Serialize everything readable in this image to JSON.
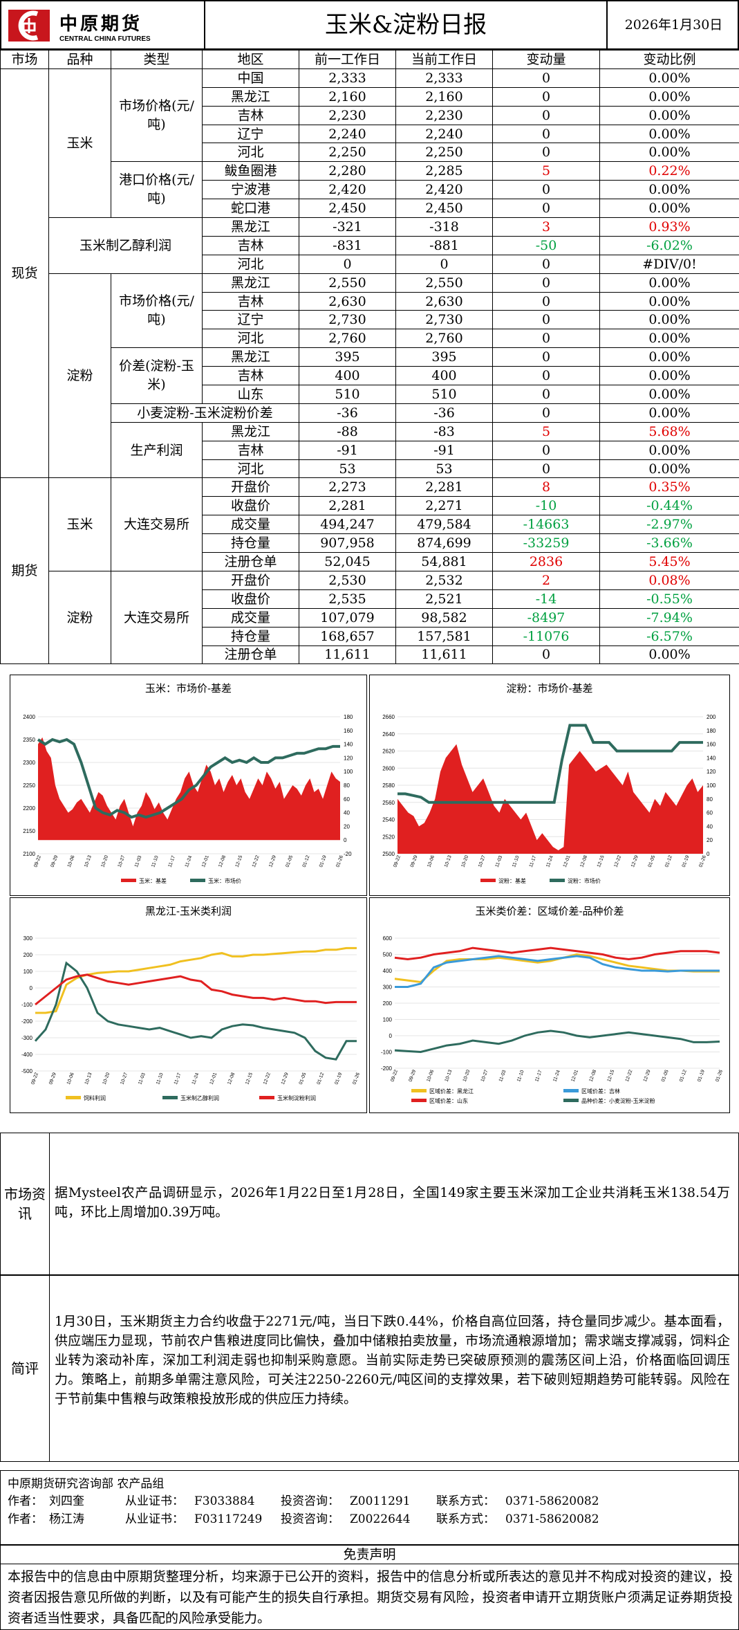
{
  "header": {
    "logo_cn": "中原期货",
    "logo_en": "CENTRAL CHINA FUTURES",
    "title": "玉米&淀粉日报",
    "date": "2026年1月30日"
  },
  "columns": [
    "市场",
    "品种",
    "类型",
    "地区",
    "前一工作日",
    "当前工作日",
    "变动量",
    "变动比例"
  ],
  "spot": {
    "market": "现货",
    "corn": {
      "name": "玉米",
      "market_price": {
        "type": "市场价格(元/吨)",
        "rows": [
          {
            "region": "中国",
            "prev": "2,333",
            "cur": "2,333",
            "chg": "0",
            "pct": "0.00%",
            "dir": ""
          },
          {
            "region": "黑龙江",
            "prev": "2,160",
            "cur": "2,160",
            "chg": "0",
            "pct": "0.00%",
            "dir": ""
          },
          {
            "region": "吉林",
            "prev": "2,230",
            "cur": "2,230",
            "chg": "0",
            "pct": "0.00%",
            "dir": ""
          },
          {
            "region": "辽宁",
            "prev": "2,240",
            "cur": "2,240",
            "chg": "0",
            "pct": "0.00%",
            "dir": ""
          },
          {
            "region": "河北",
            "prev": "2,250",
            "cur": "2,250",
            "chg": "0",
            "pct": "0.00%",
            "dir": ""
          }
        ]
      },
      "port_price": {
        "type": "港口价格(元/吨)",
        "rows": [
          {
            "region": "鲅鱼圈港",
            "prev": "2,280",
            "cur": "2,285",
            "chg": "5",
            "pct": "0.22%",
            "dir": "red"
          },
          {
            "region": "宁波港",
            "prev": "2,420",
            "cur": "2,420",
            "chg": "0",
            "pct": "0.00%",
            "dir": ""
          },
          {
            "region": "蛇口港",
            "prev": "2,450",
            "cur": "2,450",
            "chg": "0",
            "pct": "0.00%",
            "dir": ""
          }
        ]
      }
    },
    "ethanol": {
      "type": "玉米制乙醇利润",
      "rows": [
        {
          "region": "黑龙江",
          "prev": "-321",
          "cur": "-318",
          "chg": "3",
          "pct": "0.93%",
          "dir": "red"
        },
        {
          "region": "吉林",
          "prev": "-831",
          "cur": "-881",
          "chg": "-50",
          "pct": "-6.02%",
          "dir": "green"
        },
        {
          "region": "河北",
          "prev": "0",
          "cur": "0",
          "chg": "0",
          "pct": "#DIV/0!",
          "dir": ""
        }
      ]
    },
    "starch": {
      "name": "淀粉",
      "market_price": {
        "type": "市场价格(元/吨)",
        "rows": [
          {
            "region": "黑龙江",
            "prev": "2,550",
            "cur": "2,550",
            "chg": "0",
            "pct": "0.00%",
            "dir": ""
          },
          {
            "region": "吉林",
            "prev": "2,630",
            "cur": "2,630",
            "chg": "0",
            "pct": "0.00%",
            "dir": ""
          },
          {
            "region": "辽宁",
            "prev": "2,730",
            "cur": "2,730",
            "chg": "0",
            "pct": "0.00%",
            "dir": ""
          },
          {
            "region": "河北",
            "prev": "2,760",
            "cur": "2,760",
            "chg": "0",
            "pct": "0.00%",
            "dir": ""
          }
        ]
      },
      "spread": {
        "type": "价差(淀粉-玉米)",
        "rows": [
          {
            "region": "黑龙江",
            "prev": "395",
            "cur": "395",
            "chg": "0",
            "pct": "0.00%",
            "dir": ""
          },
          {
            "region": "吉林",
            "prev": "400",
            "cur": "400",
            "chg": "0",
            "pct": "0.00%",
            "dir": ""
          },
          {
            "region": "山东",
            "prev": "510",
            "cur": "510",
            "chg": "0",
            "pct": "0.00%",
            "dir": ""
          }
        ]
      },
      "wheat": {
        "type": "小麦淀粉-玉米淀粉价差",
        "prev": "-36",
        "cur": "-36",
        "chg": "0",
        "pct": "0.00%",
        "dir": ""
      },
      "profit": {
        "type": "生产利润",
        "rows": [
          {
            "region": "黑龙江",
            "prev": "-88",
            "cur": "-83",
            "chg": "5",
            "pct": "5.68%",
            "dir": "red"
          },
          {
            "region": "吉林",
            "prev": "-91",
            "cur": "-91",
            "chg": "0",
            "pct": "0.00%",
            "dir": ""
          },
          {
            "region": "河北",
            "prev": "53",
            "cur": "53",
            "chg": "0",
            "pct": "0.00%",
            "dir": ""
          }
        ]
      }
    }
  },
  "futures": {
    "market": "期货",
    "corn": {
      "name": "玉米",
      "exchange": "大连交易所",
      "rows": [
        {
          "item": "开盘价",
          "prev": "2,273",
          "cur": "2,281",
          "chg": "8",
          "pct": "0.35%",
          "dir": "red"
        },
        {
          "item": "收盘价",
          "prev": "2,281",
          "cur": "2,271",
          "chg": "-10",
          "pct": "-0.44%",
          "dir": "green"
        },
        {
          "item": "成交量",
          "prev": "494,247",
          "cur": "479,584",
          "chg": "-14663",
          "pct": "-2.97%",
          "dir": "green"
        },
        {
          "item": "持仓量",
          "prev": "907,958",
          "cur": "874,699",
          "chg": "-33259",
          "pct": "-3.66%",
          "dir": "green"
        },
        {
          "item": "注册仓单",
          "prev": "52,045",
          "cur": "54,881",
          "chg": "2836",
          "pct": "5.45%",
          "dir": "red"
        }
      ]
    },
    "starch": {
      "name": "淀粉",
      "exchange": "大连交易所",
      "rows": [
        {
          "item": "开盘价",
          "prev": "2,530",
          "cur": "2,532",
          "chg": "2",
          "pct": "0.08%",
          "dir": "red"
        },
        {
          "item": "收盘价",
          "prev": "2,535",
          "cur": "2,521",
          "chg": "-14",
          "pct": "-0.55%",
          "dir": "green"
        },
        {
          "item": "成交量",
          "prev": "107,079",
          "cur": "98,582",
          "chg": "-8497",
          "pct": "-7.94%",
          "dir": "green"
        },
        {
          "item": "持仓量",
          "prev": "168,657",
          "cur": "157,581",
          "chg": "-11076",
          "pct": "-6.57%",
          "dir": "green"
        },
        {
          "item": "注册仓单",
          "prev": "11,611",
          "cur": "11,611",
          "chg": "0",
          "pct": "0.00%",
          "dir": ""
        }
      ]
    }
  },
  "colors": {
    "red": "#e00000",
    "green": "#00a040",
    "basis_fill": "#e02020",
    "teal": "#2e6b5e",
    "gold": "#f0c020",
    "blue": "#3a9ad9"
  },
  "chart_data": [
    {
      "type": "area+line",
      "title": "玉米：市场价-基差",
      "x_ticks": [
        "09-22",
        "09-29",
        "10-06",
        "10-13",
        "10-20",
        "10-27",
        "11-03",
        "11-10",
        "11-17",
        "11-24",
        "12-01",
        "12-08",
        "12-15",
        "12-22",
        "12-29",
        "01-05",
        "01-12",
        "01-19",
        "01-26"
      ],
      "left_axis": {
        "ticks": [
          "2100",
          "2150",
          "2200",
          "2250",
          "2300",
          "2350",
          "2400"
        ],
        "ylim": [
          2100,
          2400
        ]
      },
      "right_axis": {
        "ticks": [
          "-20",
          "0",
          "20",
          "40",
          "60",
          "80",
          "100",
          "120",
          "140",
          "160",
          "180"
        ],
        "ylim": [
          -20,
          180
        ]
      },
      "series": [
        {
          "name": "玉米：基差",
          "kind": "area",
          "axis": "right",
          "values": [
            140,
            150,
            130,
            120,
            80,
            60,
            50,
            40,
            45,
            55,
            60,
            50,
            40,
            55,
            70,
            65,
            50,
            40,
            30,
            50,
            60,
            40,
            20,
            40,
            50,
            70,
            60,
            45,
            55,
            40,
            30,
            45,
            60,
            70,
            90,
            100,
            80,
            70,
            90,
            110,
            100,
            80,
            90,
            70,
            85,
            95,
            80,
            90,
            70,
            60,
            75,
            90,
            80,
            100,
            90,
            75,
            85,
            60,
            70,
            80,
            75,
            65,
            80,
            90,
            70,
            75,
            60,
            80,
            100,
            90,
            85
          ]
        },
        {
          "name": "玉米：市场价",
          "kind": "line",
          "axis": "left",
          "values": [
            2350,
            2340,
            2350,
            2345,
            2350,
            2340,
            2300,
            2250,
            2200,
            2190,
            2185,
            2195,
            2190,
            2180,
            2185,
            2180,
            2185,
            2190,
            2200,
            2210,
            2220,
            2240,
            2250,
            2270,
            2290,
            2300,
            2310,
            2300,
            2305,
            2300,
            2310,
            2300,
            2300,
            2310,
            2310,
            2315,
            2320,
            2320,
            2325,
            2330,
            2330,
            2335,
            2335
          ]
        }
      ]
    },
    {
      "type": "area+line",
      "title": "淀粉：市场价-基差",
      "x_ticks": [
        "09-22",
        "09-29",
        "10-06",
        "10-13",
        "10-20",
        "10-27",
        "11-03",
        "11-10",
        "11-17",
        "11-24",
        "12-01",
        "12-08",
        "12-15",
        "12-22",
        "12-29",
        "01-05",
        "01-12",
        "01-19",
        "01-26"
      ],
      "left_axis": {
        "ticks": [
          "2500",
          "2520",
          "2540",
          "2560",
          "2580",
          "2600",
          "2620",
          "2640",
          "2660"
        ],
        "ylim": [
          2500,
          2660
        ]
      },
      "right_axis": {
        "ticks": [
          "0",
          "20",
          "40",
          "60",
          "80",
          "100",
          "120",
          "140",
          "160",
          "180",
          "200"
        ],
        "ylim": [
          0,
          200
        ]
      },
      "series": [
        {
          "name": "淀粉：基差",
          "kind": "area",
          "axis": "right",
          "values": [
            80,
            70,
            60,
            55,
            40,
            45,
            60,
            80,
            120,
            140,
            150,
            160,
            130,
            110,
            90,
            100,
            110,
            90,
            70,
            60,
            80,
            70,
            60,
            50,
            60,
            40,
            20,
            30,
            20,
            10,
            5,
            10,
            130,
            140,
            150,
            140,
            130,
            120,
            125,
            130,
            120,
            110,
            100,
            120,
            90,
            80,
            70,
            60,
            80,
            70,
            90,
            80,
            70,
            85,
            100,
            110,
            90,
            100
          ]
        },
        {
          "name": "淀粉：市场价",
          "kind": "line",
          "axis": "left",
          "values": [
            2570,
            2570,
            2568,
            2566,
            2560,
            2560,
            2560,
            2560,
            2560,
            2560,
            2560,
            2560,
            2560,
            2560,
            2560,
            2560,
            2560,
            2560,
            2560,
            2560,
            2560,
            2610,
            2650,
            2650,
            2650,
            2630,
            2630,
            2630,
            2620,
            2620,
            2620,
            2620,
            2620,
            2620,
            2620,
            2620,
            2630,
            2630,
            2630,
            2630
          ]
        }
      ]
    },
    {
      "type": "line",
      "title": "黑龙江-玉米类利润",
      "x_ticks": [
        "09-22",
        "09-29",
        "10-06",
        "10-13",
        "10-20",
        "10-27",
        "11-03",
        "11-10",
        "11-17",
        "11-24",
        "12-01",
        "12-08",
        "12-15",
        "12-22",
        "12-29",
        "01-05",
        "01-12",
        "01-19",
        "01-26"
      ],
      "y_ticks": [
        "-500",
        "-400",
        "-300",
        "-200",
        "-100",
        "0",
        "100",
        "200",
        "300"
      ],
      "ylim": [
        -500,
        300
      ],
      "series": [
        {
          "name": "饲料利润",
          "values": [
            -150,
            -150,
            -140,
            20,
            60,
            80,
            90,
            95,
            100,
            100,
            110,
            120,
            130,
            140,
            160,
            170,
            180,
            200,
            210,
            190,
            190,
            200,
            200,
            205,
            210,
            215,
            220,
            220,
            230,
            230,
            240,
            240
          ]
        },
        {
          "name": "玉米制乙醇利润",
          "values": [
            -320,
            -250,
            -100,
            150,
            100,
            0,
            -150,
            -200,
            -220,
            -230,
            -240,
            -250,
            -240,
            -260,
            -280,
            -300,
            -290,
            -300,
            -250,
            -230,
            -220,
            -225,
            -240,
            -250,
            -260,
            -270,
            -300,
            -380,
            -420,
            -430,
            -320,
            -320
          ]
        },
        {
          "name": "玉米制淀粉利润",
          "values": [
            -100,
            -50,
            0,
            50,
            70,
            80,
            60,
            40,
            30,
            20,
            30,
            40,
            50,
            60,
            70,
            50,
            40,
            -10,
            -20,
            -40,
            -50,
            -60,
            -60,
            -70,
            -60,
            -70,
            -80,
            -80,
            -90,
            -85,
            -85,
            -85
          ]
        }
      ]
    },
    {
      "type": "line",
      "title": "玉米类价差：区域价差-品种价差",
      "x_ticks": [
        "09-22",
        "09-29",
        "10-06",
        "10-13",
        "10-20",
        "10-27",
        "11-03",
        "11-10",
        "11-17",
        "11-24",
        "12-01",
        "12-08",
        "12-15",
        "12-22",
        "12-29",
        "01-05",
        "01-12",
        "01-19",
        "01-26"
      ],
      "y_ticks": [
        "-200",
        "-100",
        "0",
        "100",
        "200",
        "300",
        "400",
        "500",
        "600"
      ],
      "ylim": [
        -200,
        600
      ],
      "series": [
        {
          "name": "区域价差：黑龙江",
          "values": [
            350,
            340,
            330,
            400,
            460,
            470,
            470,
            470,
            480,
            470,
            460,
            450,
            460,
            480,
            500,
            490,
            470,
            450,
            430,
            420,
            410,
            400,
            400,
            395,
            395,
            395
          ]
        },
        {
          "name": "区域价差：吉林",
          "values": [
            300,
            300,
            320,
            420,
            450,
            460,
            470,
            480,
            490,
            480,
            470,
            460,
            470,
            480,
            490,
            480,
            440,
            420,
            410,
            400,
            400,
            395,
            400,
            400,
            400,
            400
          ]
        },
        {
          "name": "区域价差：山东",
          "values": [
            480,
            470,
            480,
            500,
            510,
            520,
            540,
            530,
            520,
            510,
            520,
            530,
            540,
            530,
            520,
            510,
            500,
            480,
            470,
            480,
            500,
            510,
            520,
            520,
            520,
            510
          ]
        },
        {
          "name": "品种价差：小麦淀粉-玉米淀粉",
          "values": [
            -90,
            -95,
            -100,
            -80,
            -60,
            -50,
            -30,
            -40,
            -50,
            -30,
            0,
            20,
            30,
            20,
            0,
            -10,
            0,
            10,
            20,
            10,
            0,
            -10,
            -20,
            -40,
            -40,
            -36
          ]
        }
      ]
    }
  ],
  "info": {
    "label": "市场资讯",
    "text": "据Mysteel农产品调研显示，2026年1月22日至1月28日，全国149家主要玉米深加工企业共消耗玉米138.54万吨，环比上周增加0.39万吨。"
  },
  "review": {
    "label": "简评",
    "text": "1月30日，玉米期货主力合约收盘于2271元/吨，当日下跌0.44%，价格自高位回落，持仓量同步减少。基本面看，供应端压力显现，节前农户售粮进度同比偏快，叠加中储粮拍卖放量，市场流通粮源增加；需求端支撑减弱，饲料企业转为滚动补库，深加工利润走弱也抑制采购意愿。当前实际走势已突破原预测的震荡区间上沿，价格面临回调压力。策略上，前期多单需注意风险，可关注2250-2260元/吨区间的支撑效果，若下破则短期趋势可能转弱。风险在于节前集中售粮与政策粮投放形成的供应压力持续。"
  },
  "footer": {
    "dept": "中原期货研究咨询部  农产品组",
    "authors": [
      {
        "label": "作者：",
        "name": "刘四奎",
        "cert_label": "从业证书：",
        "cert": "F3033884",
        "consult_label": "投资咨询：",
        "consult": "Z0011291",
        "contact_label": "联系方式：",
        "contact": "0371-58620082"
      },
      {
        "label": "作者：",
        "name": "杨江涛",
        "cert_label": "从业证书：",
        "cert": "F03117249",
        "consult_label": "投资咨询：",
        "consult": "Z0022644",
        "contact_label": "联系方式：",
        "contact": "0371-58620082"
      }
    ]
  },
  "disclaimer": {
    "title": "免责声明",
    "text": "本报告中的信息由中原期货整理分析，均来源于已公开的资料，报告中的信息分析或所表达的意见并不构成对投资的建议，投资者因报告意见所做的判断，以及有可能产生的损失自行承担。期货交易有风险，投资者申请开立期货账户须满足证券期货投资者适当性要求，具备匹配的风险承受能力。"
  }
}
